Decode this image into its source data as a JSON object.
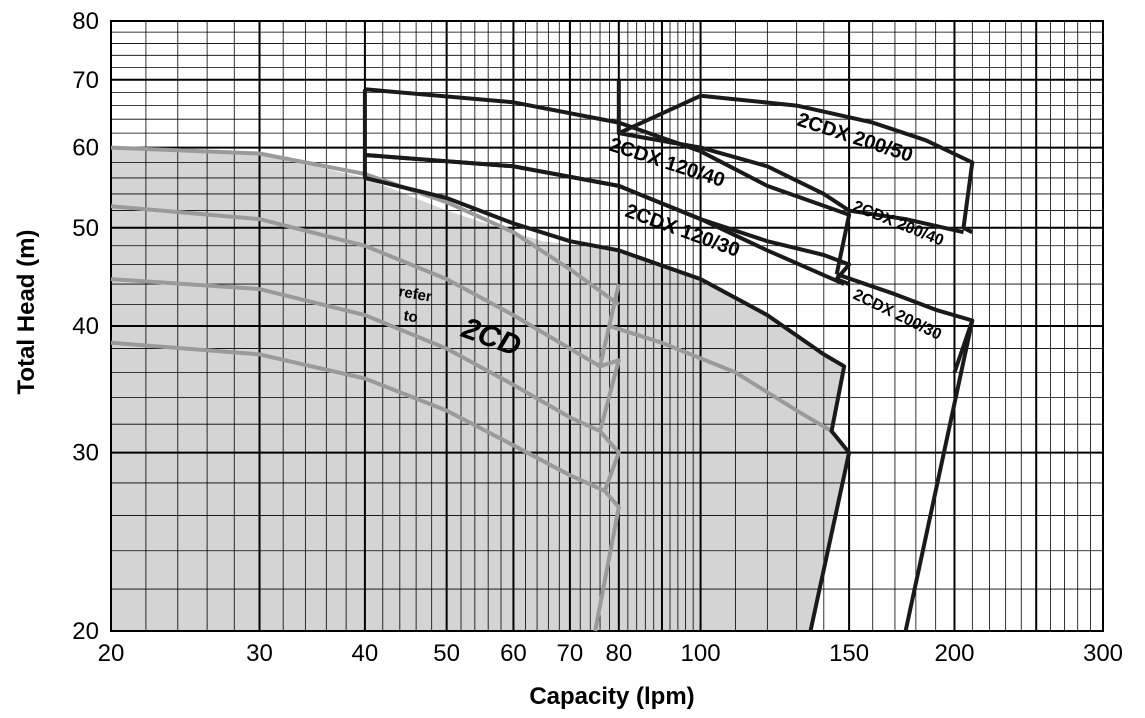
{
  "chart_data": {
    "type": "line",
    "x_scale": "log",
    "y_scale": "log",
    "xlim": [
      20,
      300
    ],
    "ylim": [
      20,
      80
    ],
    "xlabel": "Capacity  (lpm)",
    "ylabel": "Total Head  (m)",
    "x_ticks": [
      "20",
      "30",
      "40",
      "50",
      "60",
      "70",
      "80",
      "100",
      "150",
      "200",
      "300"
    ],
    "y_ticks": [
      "20",
      "30",
      "40",
      "50",
      "60",
      "70",
      "80"
    ],
    "grid": true,
    "background_region": {
      "fill": "#d4d4d4",
      "outline": [
        [
          20,
          60
        ],
        [
          30,
          59.2
        ],
        [
          40,
          56
        ],
        [
          50,
          52
        ],
        [
          60,
          49.5
        ],
        [
          65,
          48.5
        ],
        [
          80,
          47.5
        ],
        [
          100,
          44.5
        ],
        [
          120,
          41
        ],
        [
          140,
          37.5
        ],
        [
          148,
          36.5
        ],
        [
          143,
          31.5
        ],
        [
          150,
          30
        ],
        [
          135,
          20
        ],
        [
          20,
          20
        ]
      ]
    },
    "gray_curves": [
      {
        "x": [
          20,
          30,
          40,
          50,
          60,
          70,
          80
        ],
        "y": [
          60,
          59.2,
          56.5,
          53,
          49.5,
          45.5,
          42
        ]
      },
      {
        "x": [
          20,
          30,
          40,
          50,
          60,
          70,
          76
        ],
        "y": [
          52.5,
          51,
          48,
          44.5,
          41,
          38,
          36.5
        ]
      },
      {
        "x": [
          20,
          30,
          40,
          50,
          60,
          70,
          76
        ],
        "y": [
          44.5,
          43.5,
          41,
          38,
          35,
          32.5,
          31.5
        ]
      },
      {
        "x": [
          20,
          30,
          40,
          50,
          60,
          70,
          77
        ],
        "y": [
          38.5,
          37.5,
          35.5,
          33,
          30.5,
          28.5,
          27.5
        ]
      },
      {
        "x": [
          80,
          100,
          120,
          140,
          148
        ],
        "y": [
          47.5,
          44.5,
          41,
          37.5,
          36.5
        ]
      },
      {
        "x": [
          78,
          90,
          110,
          130,
          143
        ],
        "y": [
          40,
          38.5,
          36,
          33,
          31.5
        ]
      }
    ],
    "gray_zigzag": {
      "x": [
        80,
        76,
        80,
        76,
        80,
        77,
        80,
        75
      ],
      "y": [
        44,
        36.5,
        37,
        31.5,
        30,
        27.5,
        26.5,
        20
      ]
    },
    "series": [
      {
        "name": "2CDX 120/30",
        "x": [
          40,
          40,
          50,
          60,
          70,
          80,
          100,
          120,
          140,
          148,
          143,
          150,
          135
        ],
        "y": [
          59,
          56,
          53.5,
          50.5,
          48.5,
          47.5,
          44.5,
          41,
          37.5,
          36.5,
          31.5,
          30,
          20
        ]
      },
      {
        "name": "2CDX 120/40",
        "x": [
          40,
          40,
          60,
          80,
          100,
          120,
          140,
          150,
          145,
          150
        ],
        "y": [
          68.5,
          59,
          57.5,
          55,
          51,
          48.5,
          47,
          46,
          44.5,
          44
        ]
      },
      {
        "name": "2CDX 200/50",
        "x": [
          80,
          80,
          100,
          130,
          160,
          185,
          210,
          205,
          210
        ],
        "y": [
          70,
          62,
          67.5,
          66,
          63.5,
          61,
          58,
          50,
          49.5
        ]
      },
      {
        "name": "2CDX 200/40",
        "x": [
          145,
          170,
          190,
          210,
          200
        ],
        "y": [
          45,
          43,
          41.5,
          40.5,
          36
        ]
      },
      {
        "name": "2CDX 200/30",
        "x": [
          210,
          175
        ],
        "y": [
          40.5,
          20
        ]
      }
    ],
    "outline_120_40_top": {
      "x": [
        40,
        60,
        80,
        100,
        120,
        150,
        145
      ],
      "y": [
        68.5,
        66.5,
        63.5,
        59.5,
        55,
        51.5,
        45
      ]
    },
    "outline_120_30_top": {
      "x": [
        40,
        60,
        80,
        100,
        120,
        148
      ],
      "y": [
        59,
        57.5,
        55,
        51,
        47.5,
        44
      ]
    },
    "outline_200_top": {
      "x": [
        80,
        100,
        120,
        140,
        150,
        175,
        205
      ],
      "y": [
        62,
        60,
        57.5,
        54,
        52,
        51,
        49.5
      ]
    },
    "annotations": {
      "refer": "refer",
      "to": "to",
      "product": "2CD"
    }
  }
}
